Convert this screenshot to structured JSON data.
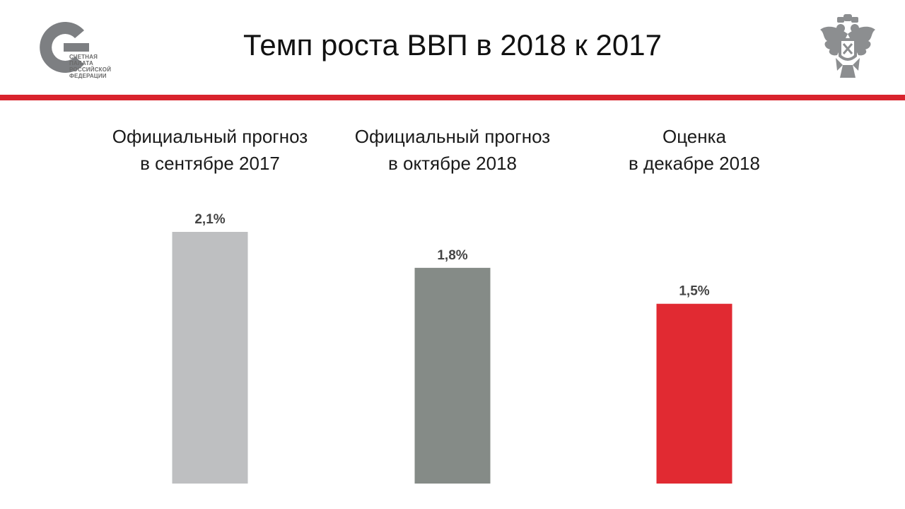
{
  "header": {
    "title": "Темп роста ВВП в 2018 к 2017",
    "logo_lines": [
      "СЧЕТНАЯ",
      "ПАЛАТА",
      "РОССИЙСКОЙ",
      "ФЕДЕРАЦИИ"
    ],
    "logo_icon": "accounts-chamber-logo",
    "emblem_icon": "double-headed-eagle-emblem",
    "accent_color": "#d9232d"
  },
  "chart_data": {
    "type": "bar",
    "categories": [
      [
        "Официальный прогноз",
        "в сентябре 2017"
      ],
      [
        "Официальный прогноз",
        "в октябре 2018"
      ],
      [
        "Оценка",
        "в декабре 2018"
      ]
    ],
    "values": [
      2.1,
      1.8,
      1.5
    ],
    "value_labels": [
      "2,1%",
      "1,8%",
      "1,5%"
    ],
    "colors": [
      "#bebfc1",
      "#858b87",
      "#e12a32"
    ],
    "ylim": [
      0,
      2.1
    ],
    "grid": false,
    "legend": "none"
  }
}
